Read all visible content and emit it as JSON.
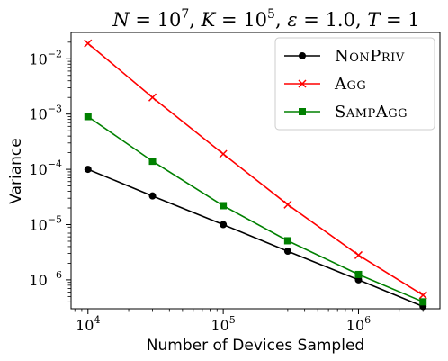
{
  "chart_data": {
    "type": "line",
    "title": "N = 10^7, K = 10^5, ε = 1.0, T = 1",
    "title_parts": {
      "n_name": "N",
      "n_base": "10",
      "n_exp": "7",
      "k_name": "K",
      "k_base": "10",
      "k_exp": "5",
      "eps_name": "ε",
      "eps_val": "1.0",
      "t_name": "T",
      "t_val": "1"
    },
    "xlabel": "Number of Devices Sampled",
    "ylabel": "Variance",
    "x_scale": "log",
    "y_scale": "log",
    "xlim": [
      7500,
      4000000
    ],
    "ylim": [
      3e-07,
      0.03
    ],
    "x_ticks": [
      {
        "value": 10000,
        "base": "10",
        "exp": "4"
      },
      {
        "value": 100000,
        "base": "10",
        "exp": "5"
      },
      {
        "value": 1000000,
        "base": "10",
        "exp": "6"
      }
    ],
    "y_ticks": [
      {
        "value": 1e-06,
        "base": "10",
        "exp": "−6"
      },
      {
        "value": 1e-05,
        "base": "10",
        "exp": "−5"
      },
      {
        "value": 0.0001,
        "base": "10",
        "exp": "−4"
      },
      {
        "value": 0.001,
        "base": "10",
        "exp": "−3"
      },
      {
        "value": 0.01,
        "base": "10",
        "exp": "−2"
      }
    ],
    "x": [
      10000,
      30000,
      100000,
      300000,
      1000000,
      3000000
    ],
    "series": [
      {
        "name": "NonPriv",
        "color": "#000000",
        "marker": "circle",
        "values": [
          0.0001,
          3.3e-05,
          1e-05,
          3.3e-06,
          1e-06,
          3.3e-07
        ]
      },
      {
        "name": "Agg",
        "color": "#ff0000",
        "marker": "x",
        "values": [
          0.019,
          0.002,
          0.00019,
          2.3e-05,
          2.8e-06,
          5.3e-07
        ]
      },
      {
        "name": "SampAgg",
        "color": "#008000",
        "marker": "square",
        "values": [
          0.0009,
          0.00014,
          2.2e-05,
          5.1e-06,
          1.25e-06,
          4e-07
        ]
      }
    ],
    "legend_position": "top-right",
    "grid": false
  }
}
